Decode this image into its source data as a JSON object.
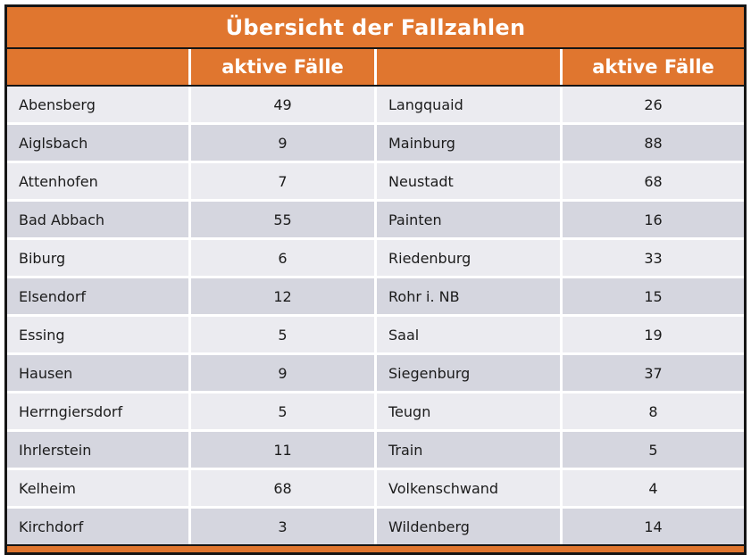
{
  "title": "Übersicht der Fallzahlen",
  "header": {
    "active_cases_label_left": "aktive Fälle",
    "active_cases_label_right": "aktive Fälle"
  },
  "colors": {
    "accent_orange": "#E0762F",
    "row_light": "#EBEBF0",
    "row_dark": "#D5D6DF",
    "frame_border": "#151515",
    "header_text": "#ffffff",
    "body_text": "#1b1b1b"
  },
  "rows": [
    {
      "left_name": "Abensberg",
      "left_value": "49",
      "right_name": "Langquaid",
      "right_value": "26"
    },
    {
      "left_name": "Aiglsbach",
      "left_value": "9",
      "right_name": "Mainburg",
      "right_value": "88"
    },
    {
      "left_name": "Attenhofen",
      "left_value": "7",
      "right_name": "Neustadt",
      "right_value": "68"
    },
    {
      "left_name": "Bad Abbach",
      "left_value": "55",
      "right_name": "Painten",
      "right_value": "16"
    },
    {
      "left_name": "Biburg",
      "left_value": "6",
      "right_name": "Riedenburg",
      "right_value": "33"
    },
    {
      "left_name": "Elsendorf",
      "left_value": "12",
      "right_name": "Rohr i. NB",
      "right_value": "15"
    },
    {
      "left_name": "Essing",
      "left_value": "5",
      "right_name": "Saal",
      "right_value": "19"
    },
    {
      "left_name": "Hausen",
      "left_value": "9",
      "right_name": "Siegenburg",
      "right_value": "37"
    },
    {
      "left_name": "Herrngiersdorf",
      "left_value": "5",
      "right_name": "Teugn",
      "right_value": "8"
    },
    {
      "left_name": "Ihrlerstein",
      "left_value": "11",
      "right_name": "Train",
      "right_value": "5"
    },
    {
      "left_name": "Kelheim",
      "left_value": "68",
      "right_name": "Volkenschwand",
      "right_value": "4"
    },
    {
      "left_name": "Kirchdorf",
      "left_value": "3",
      "right_name": "Wildenberg",
      "right_value": "14"
    }
  ]
}
